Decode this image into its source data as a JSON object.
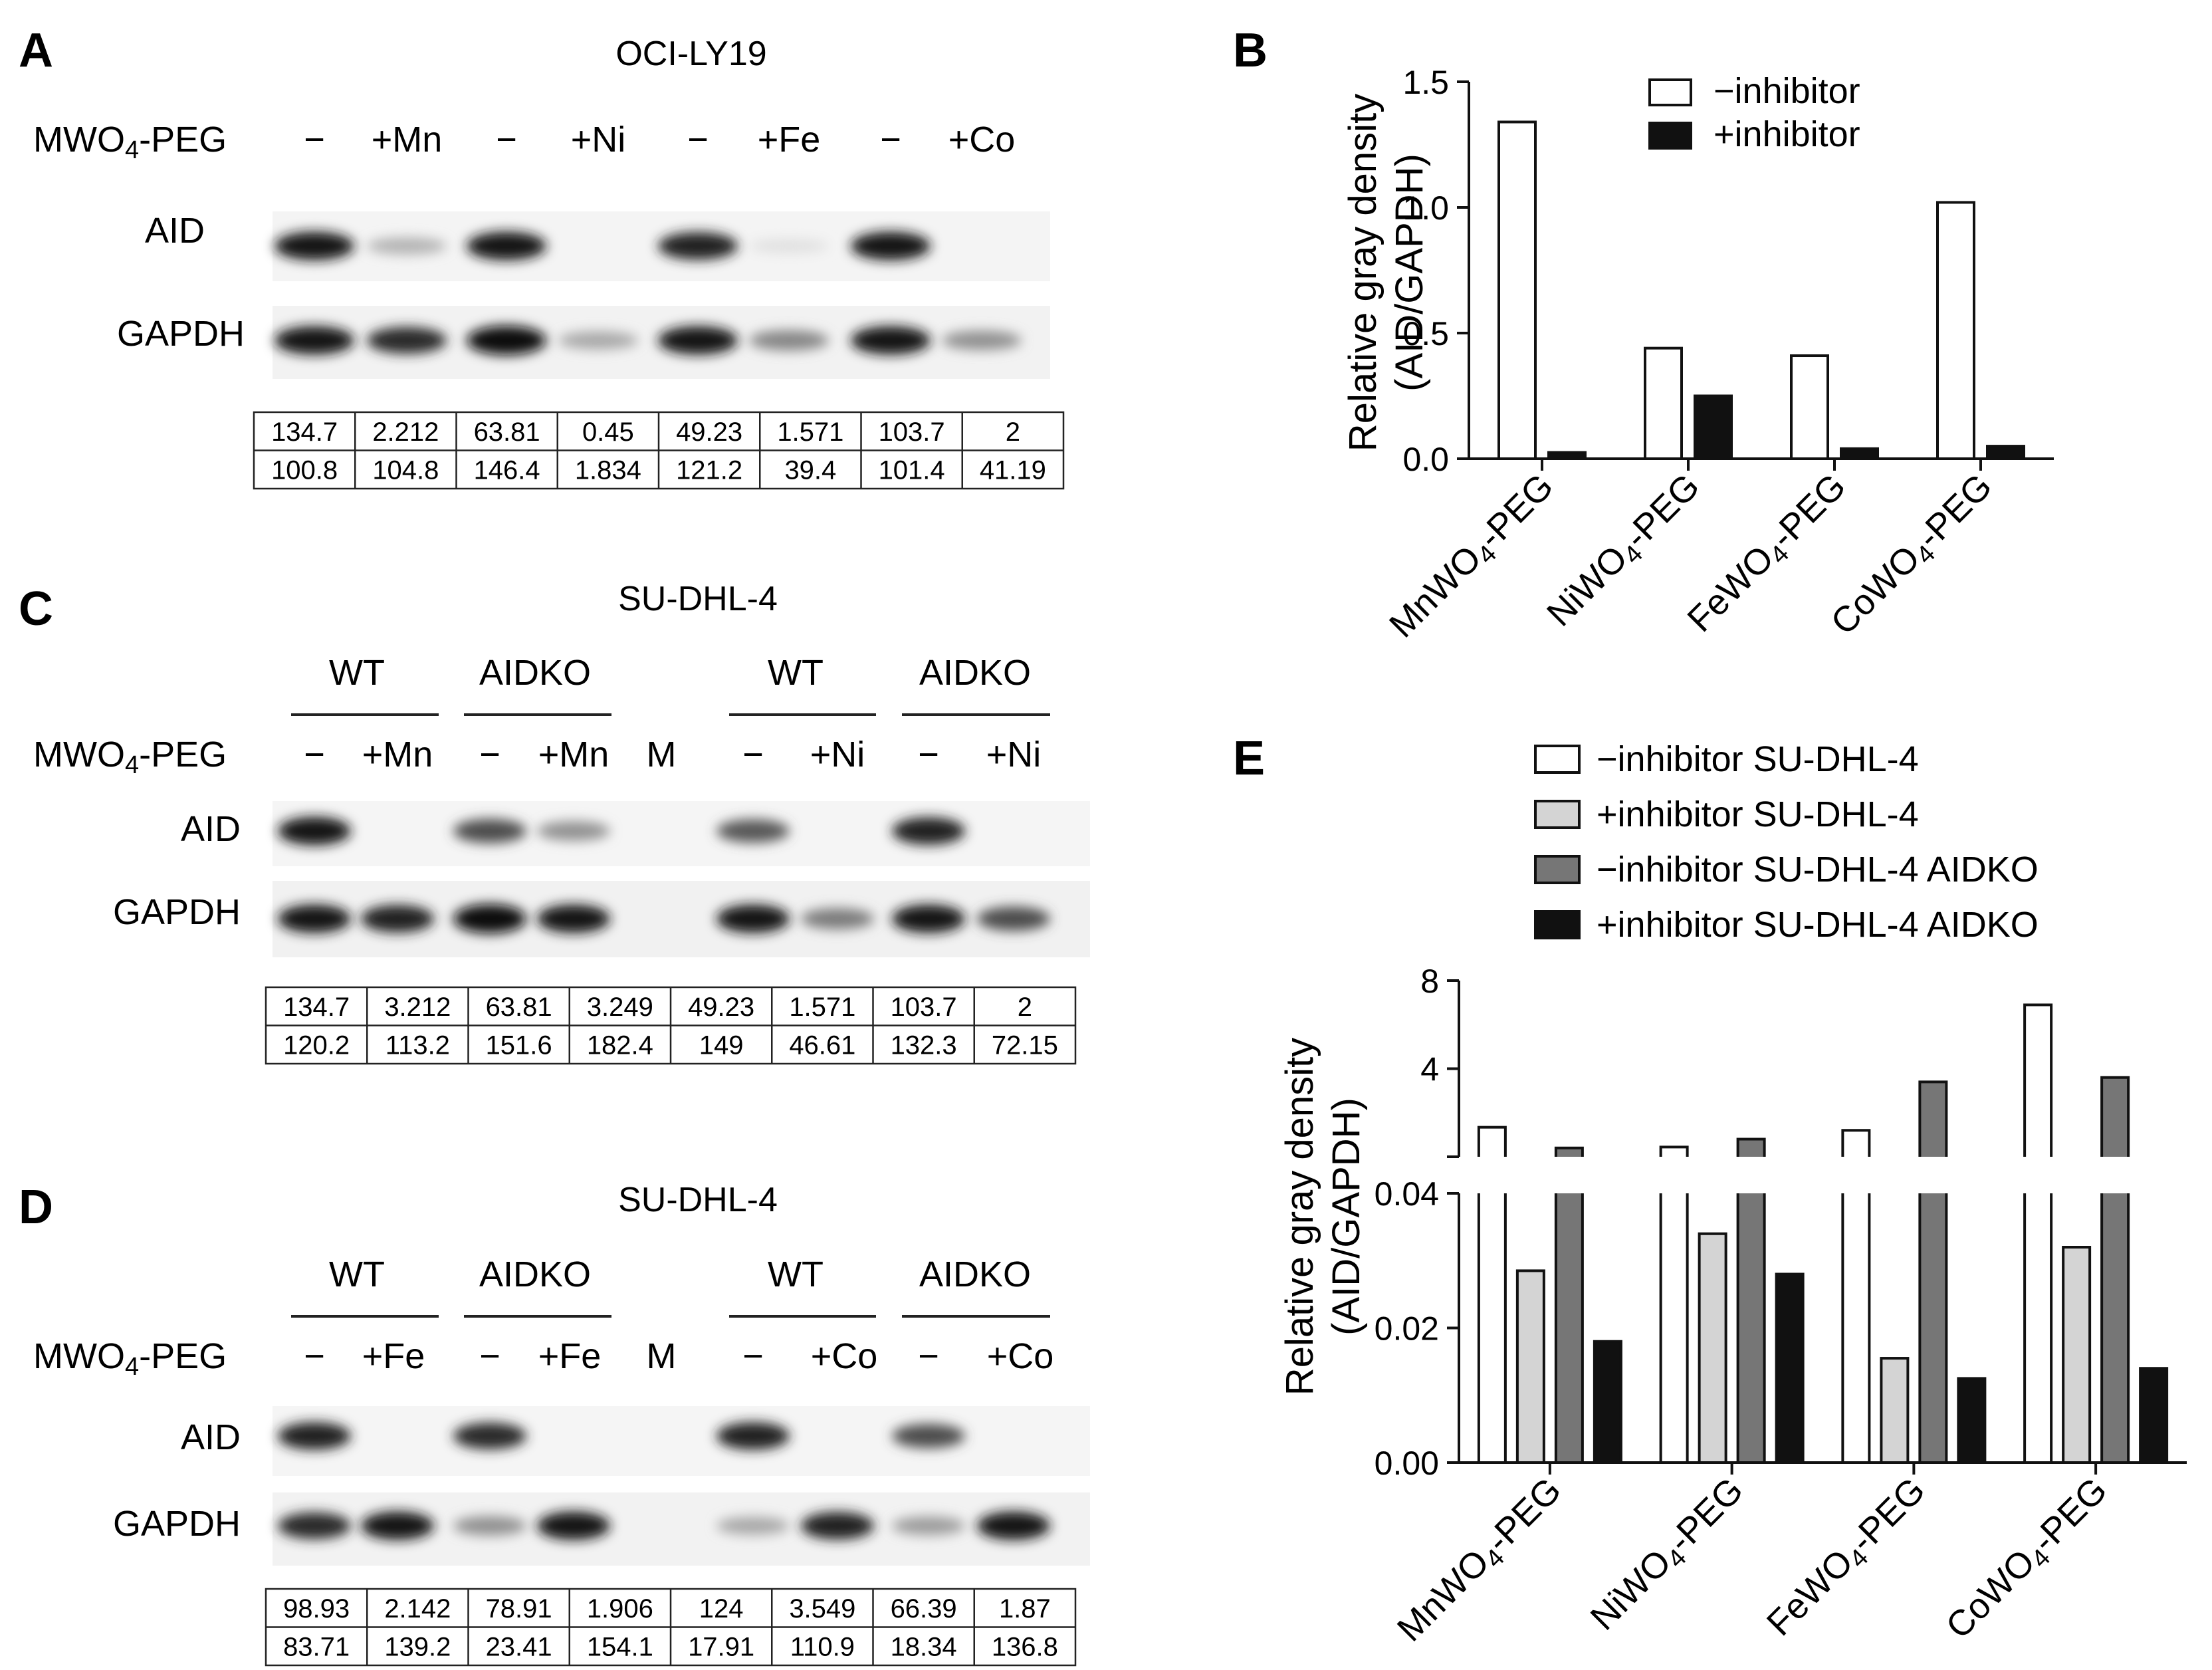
{
  "panels": {
    "A": {
      "label": "A",
      "title": "OCI-LY19",
      "treatment_label": "MWO4-PEG",
      "lane_labels": [
        "−",
        "+Mn",
        "−",
        "+Ni",
        "−",
        "+Fe",
        "−",
        "+Co"
      ],
      "row_labels": [
        "AID",
        "GAPDH"
      ],
      "aid_intensity": [
        0.95,
        0.25,
        0.95,
        0.0,
        0.9,
        0.05,
        0.95,
        0.0
      ],
      "gapdh_intensity": [
        0.95,
        0.85,
        1.0,
        0.3,
        0.95,
        0.45,
        0.95,
        0.4
      ],
      "table": [
        [
          "134.7",
          "2.212",
          "63.81",
          "0.45",
          "49.23",
          "1.571",
          "103.7",
          "2"
        ],
        [
          "100.8",
          "104.8",
          "146.4",
          "1.834",
          "121.2",
          "39.4",
          "101.4",
          "41.19"
        ]
      ]
    },
    "C": {
      "label": "C",
      "title": "SU-DHL-4",
      "groups": [
        "WT",
        "AIDKO",
        "WT",
        "AIDKO"
      ],
      "treatment_label": "MWO4-PEG",
      "lane_labels": [
        "−",
        "+Mn",
        "−",
        "+Mn",
        "M",
        "−",
        "+Ni",
        "−",
        "+Ni"
      ],
      "row_labels": [
        "AID",
        "GAPDH"
      ],
      "aid_intensity": [
        0.95,
        0.0,
        0.7,
        0.4,
        0.0,
        0.65,
        0.0,
        0.9,
        0.0
      ],
      "gapdh_intensity": [
        0.95,
        0.9,
        1.0,
        0.95,
        0.0,
        0.95,
        0.5,
        0.95,
        0.7
      ],
      "table": [
        [
          "134.7",
          "3.212",
          "63.81",
          "3.249",
          "49.23",
          "1.571",
          "103.7",
          "2"
        ],
        [
          "120.2",
          "113.2",
          "151.6",
          "182.4",
          "149",
          "46.61",
          "132.3",
          "72.15"
        ]
      ]
    },
    "D": {
      "label": "D",
      "title": "SU-DHL-4",
      "groups": [
        "WT",
        "AIDKO",
        "WT",
        "AIDKO"
      ],
      "treatment_label": "MWO4-PEG",
      "lane_labels": [
        "−",
        "+Fe",
        "−",
        "+Fe",
        "M",
        "−",
        "+Co",
        "−",
        "+Co"
      ],
      "row_labels": [
        "AID",
        "GAPDH"
      ],
      "aid_intensity": [
        0.9,
        0.0,
        0.85,
        0.0,
        0.0,
        0.9,
        0.0,
        0.7,
        0.0
      ],
      "gapdh_intensity": [
        0.85,
        0.95,
        0.4,
        0.95,
        0.0,
        0.3,
        0.9,
        0.35,
        0.95
      ],
      "table": [
        [
          "98.93",
          "2.142",
          "78.91",
          "1.906",
          "124",
          "3.549",
          "66.39",
          "1.87"
        ],
        [
          "83.71",
          "139.2",
          "23.41",
          "154.1",
          "17.91",
          "110.9",
          "18.34",
          "136.8"
        ]
      ]
    },
    "B": {
      "label": "B"
    },
    "E": {
      "label": "E"
    }
  },
  "chart_data": [
    {
      "type": "bar",
      "panel": "B",
      "categories": [
        "MnWO4-PEG",
        "NiWO4-PEG",
        "FeWO4-PEG",
        "CoWO4-PEG"
      ],
      "ylabel": "Relative gray density",
      "ylabel2": "(AID/GAPDH)",
      "ylim": [
        0,
        1.5
      ],
      "yticks": [
        "0.0",
        "0.5",
        "1.0",
        "1.5"
      ],
      "legend_position": "top-right",
      "grid": false,
      "series": [
        {
          "name": "−inhibitor",
          "values": [
            1.34,
            0.44,
            0.41,
            1.02
          ],
          "color": "#ffffff"
        },
        {
          "name": "+inhibitor",
          "values": [
            0.025,
            0.25,
            0.04,
            0.05
          ],
          "color": "#111111"
        }
      ]
    },
    {
      "type": "bar",
      "panel": "E",
      "categories": [
        "MnWO4-PEG",
        "NiWO4-PEG",
        "FeWO4-PEG",
        "CoWO4-PEG"
      ],
      "ylabel": "Relative gray density",
      "ylabel2": "(AID/GAPDH)",
      "broken_axis": true,
      "ylim_lower": [
        0,
        0.04
      ],
      "yticks_lower": [
        "0.00",
        "0.02",
        "0.04"
      ],
      "ylim_upper": [
        0,
        8
      ],
      "yticks_upper": [
        "4",
        "8"
      ],
      "legend_position": "top",
      "grid": false,
      "series": [
        {
          "name": "−inhibitor SU-DHL-4",
          "values": [
            1.34,
            0.44,
            1.2,
            6.9
          ],
          "color": "#ffffff"
        },
        {
          "name": "+inhibitor SU-DHL-4",
          "values": [
            0.0285,
            0.034,
            0.0155,
            0.032
          ],
          "color": "#d4d4d4"
        },
        {
          "name": "−inhibitor SU-DHL-4 AIDKO",
          "values": [
            0.4,
            0.8,
            3.4,
            3.6
          ],
          "color": "#767676"
        },
        {
          "name": "+inhibitor SU-DHL-4 AIDKO",
          "values": [
            0.018,
            0.028,
            0.0125,
            0.014
          ],
          "color": "#111111"
        }
      ]
    }
  ]
}
